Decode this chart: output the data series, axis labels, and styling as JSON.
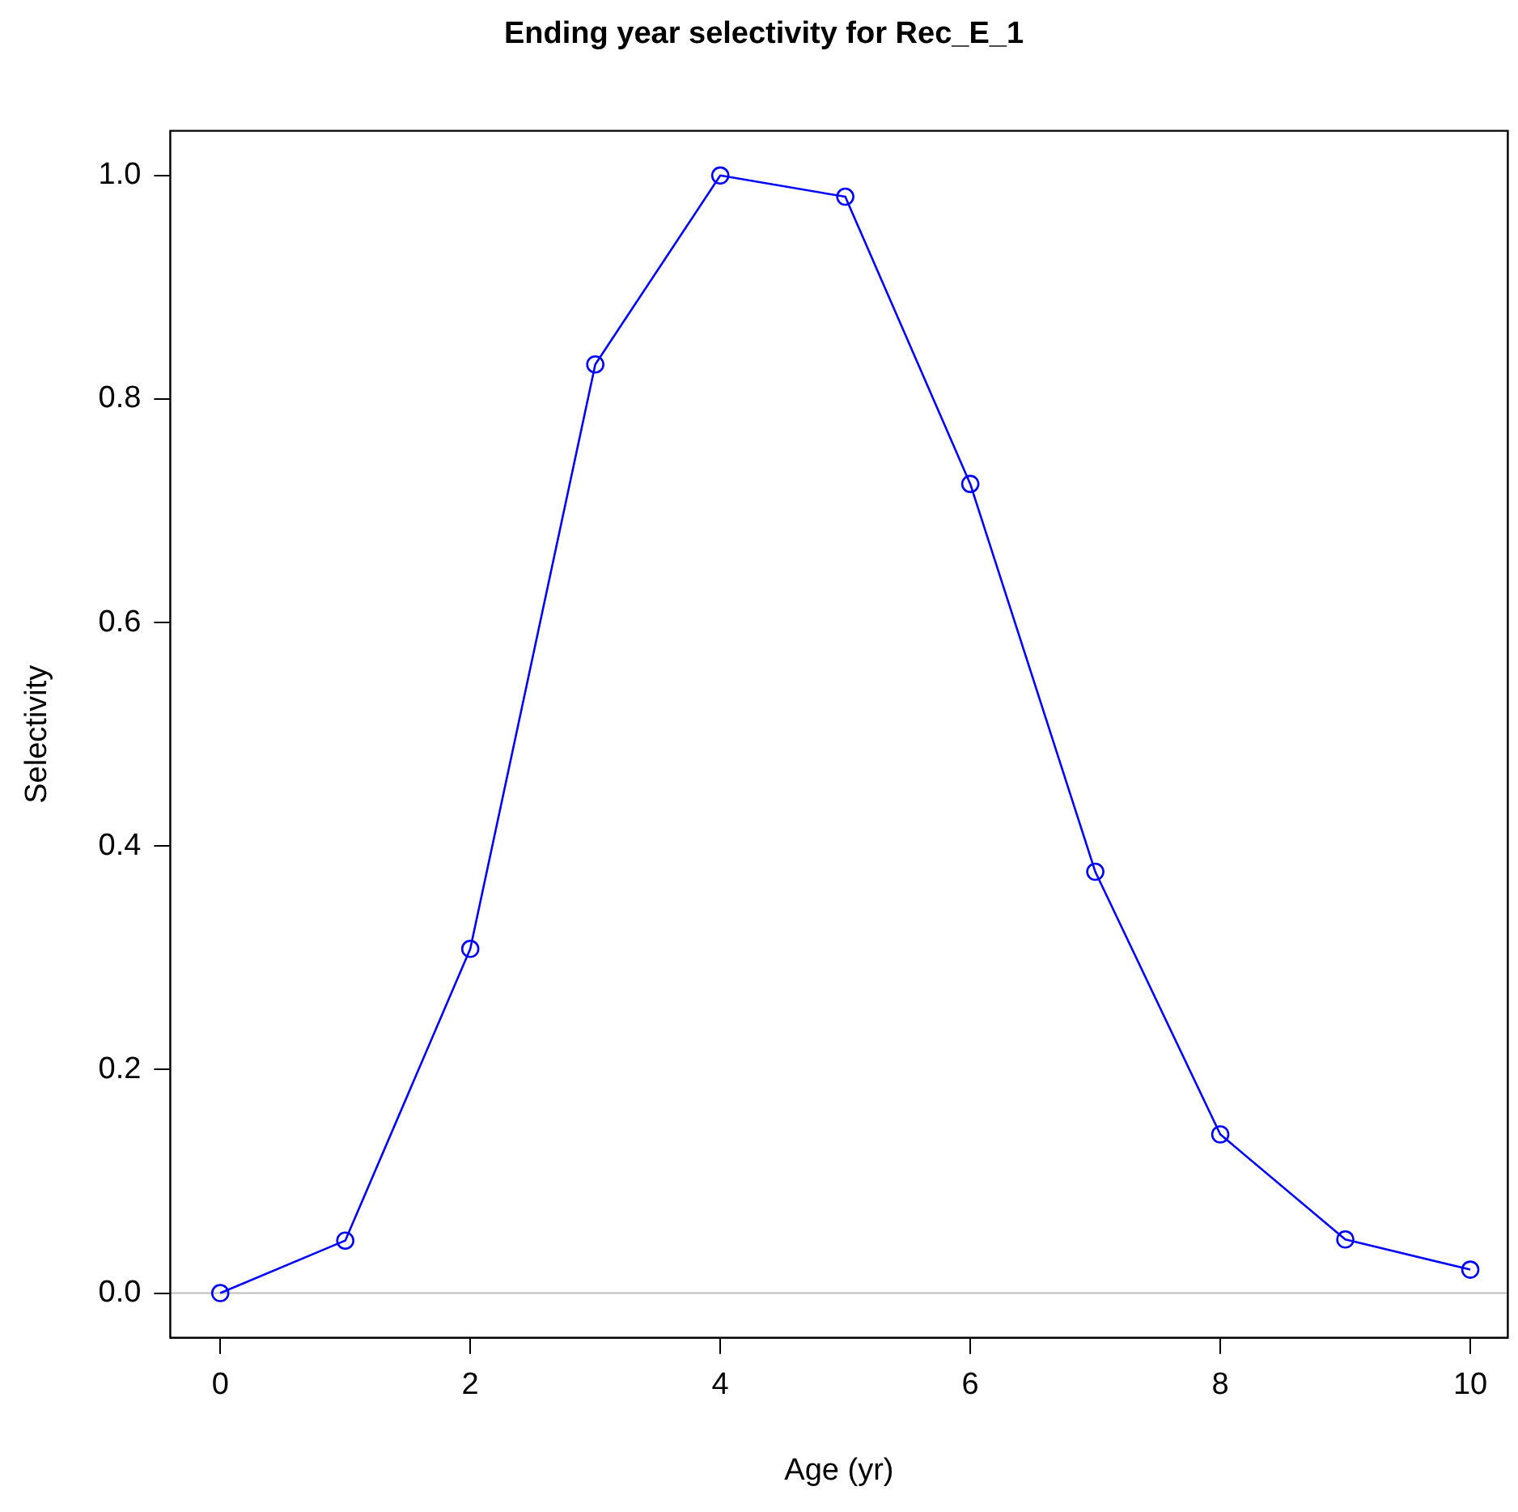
{
  "chart_data": {
    "type": "line",
    "title": "Ending year selectivity for Rec_E_1",
    "xlabel": "Age (yr)",
    "ylabel": "Selectivity",
    "x": [
      0,
      1,
      2,
      3,
      4,
      5,
      6,
      7,
      8,
      9,
      10
    ],
    "series": [
      {
        "color": "#0000ff",
        "values": [
          0,
          0.047,
          0.308,
          0.831,
          1.0,
          0.981,
          0.724,
          0.377,
          0.142,
          0.048,
          0.021
        ]
      }
    ],
    "xlim": [
      -0.4,
      10.3
    ],
    "xticks": [
      0,
      2,
      4,
      6,
      8,
      10
    ],
    "ylim": [
      -0.04,
      1.04
    ],
    "yticks": [
      {
        "value": 0,
        "label": "0.0"
      },
      {
        "value": 0.2,
        "label": "0.2"
      },
      {
        "value": 0.4,
        "label": "0.4"
      },
      {
        "value": 0.6,
        "label": "0.6"
      },
      {
        "value": 0.8,
        "label": "0.8"
      },
      {
        "value": 1,
        "label": "1.0"
      }
    ],
    "ref_lines": [
      {
        "axis": "y",
        "value": 0,
        "color": "#bebebe"
      }
    ],
    "marker": "circle",
    "line_style": "solid",
    "grid": false,
    "legend": false
  }
}
